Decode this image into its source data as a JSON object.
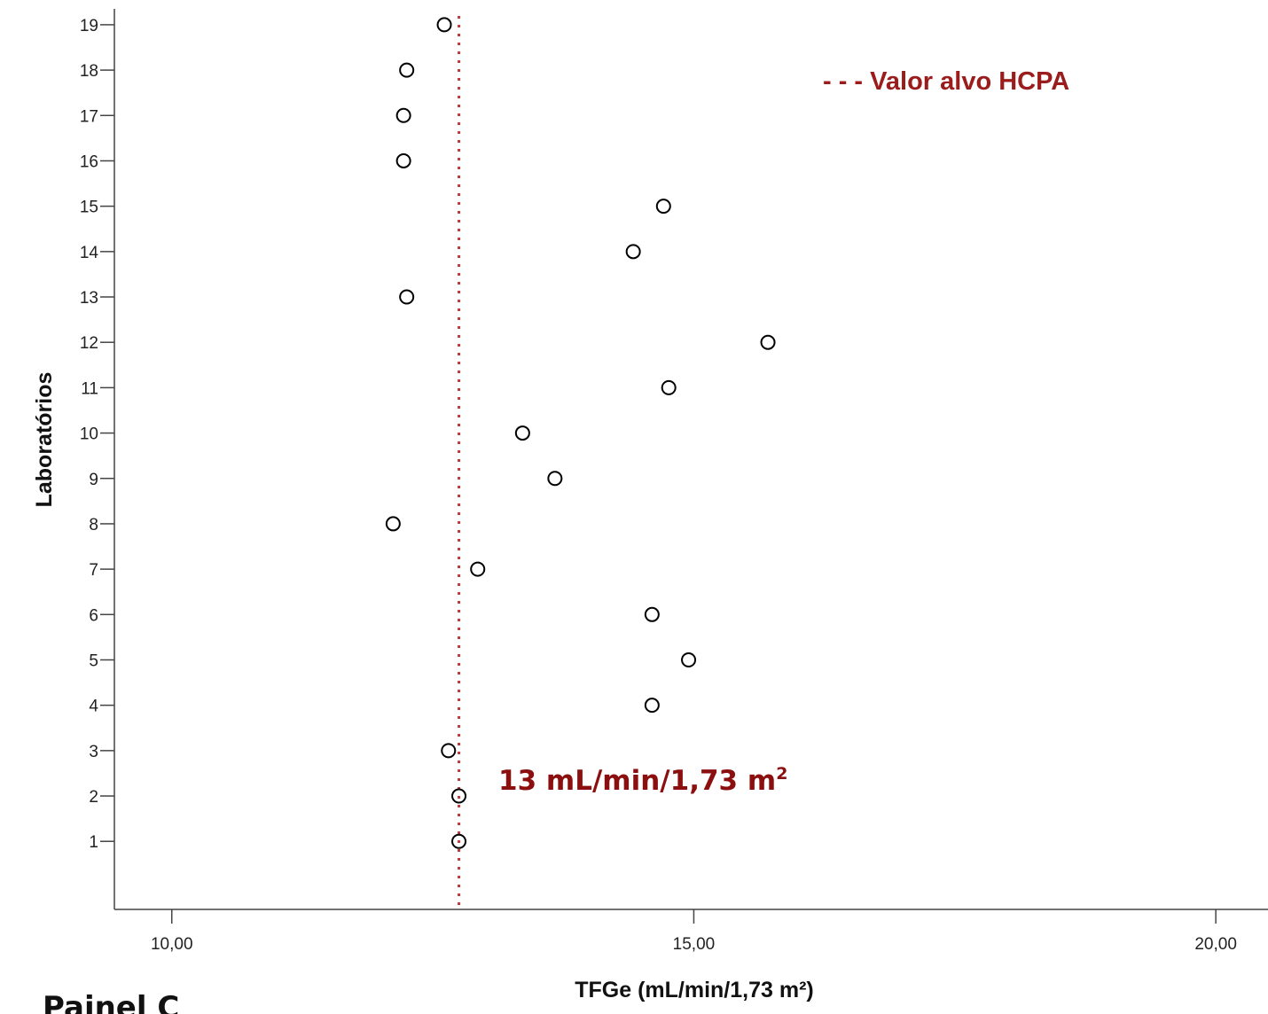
{
  "chart_data": {
    "type": "scatter",
    "xlabel": "TFGe (mL/min/1,73 m²)",
    "ylabel": "Laboratórios",
    "xlim": [
      9.45,
      20.5
    ],
    "ylim": [
      -0.5,
      19.35
    ],
    "x_ticks": [
      10.0,
      15.0,
      20.0
    ],
    "x_tick_labels": [
      "10,00",
      "15,00",
      "20,00"
    ],
    "y_ticks": [
      1,
      2,
      3,
      4,
      5,
      6,
      7,
      8,
      9,
      10,
      11,
      12,
      13,
      14,
      15,
      16,
      17,
      18,
      19
    ],
    "y_tick_labels": [
      "1",
      "2",
      "3",
      "4",
      "5",
      "6",
      "7",
      "8",
      "9",
      "10",
      "11",
      "12",
      "13",
      "14",
      "15",
      "16",
      "17",
      "18",
      "19"
    ],
    "points": [
      {
        "lab": 1,
        "value": 12.75
      },
      {
        "lab": 2,
        "value": 12.75
      },
      {
        "lab": 3,
        "value": 12.65
      },
      {
        "lab": 4,
        "value": 14.6
      },
      {
        "lab": 5,
        "value": 14.95
      },
      {
        "lab": 6,
        "value": 14.6
      },
      {
        "lab": 7,
        "value": 12.93
      },
      {
        "lab": 8,
        "value": 12.12
      },
      {
        "lab": 9,
        "value": 13.67
      },
      {
        "lab": 10,
        "value": 13.36
      },
      {
        "lab": 11,
        "value": 14.76
      },
      {
        "lab": 12,
        "value": 15.71
      },
      {
        "lab": 13,
        "value": 12.25
      },
      {
        "lab": 14,
        "value": 14.42
      },
      {
        "lab": 15,
        "value": 14.71
      },
      {
        "lab": 16,
        "value": 12.22
      },
      {
        "lab": 17,
        "value": 12.22
      },
      {
        "lab": 18,
        "value": 12.25
      },
      {
        "lab": 19,
        "value": 12.61
      }
    ],
    "reference_line": {
      "value": 12.75,
      "style": "dotted",
      "color": "#c0393b",
      "legend_label": "- - - Valor alvo HCPA",
      "annotation": "13 mL/min/1,73 m",
      "annotation_superscript": "2"
    },
    "legend_placement": "top-right",
    "grid": false,
    "marker": "open-circle",
    "marker_color": "#000000"
  },
  "panel_label": "Painel C"
}
